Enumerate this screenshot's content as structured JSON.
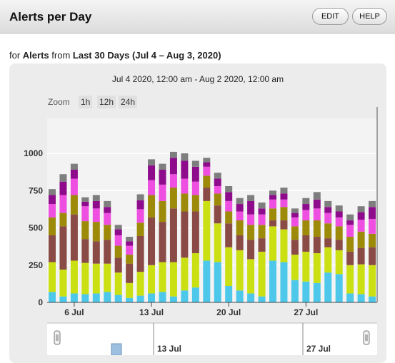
{
  "header": {
    "title": "Alerts per Day",
    "edit_label": "EDIT",
    "help_label": "HELP"
  },
  "subtitle": {
    "prefix": "for",
    "entity": "Alerts",
    "middle": "from",
    "range": "Last 30 Days (Jul 4 – Aug 3, 2020)"
  },
  "chart_header": {
    "date_range": "Jul 4 2020, 12:00 am - Aug 2 2020, 12:00 am"
  },
  "zoom": {
    "label": "Zoom",
    "options": [
      "1h",
      "12h",
      "24h"
    ]
  },
  "navigator": {
    "labels": [
      "13 Jul",
      "27 Jul"
    ]
  },
  "chart_data": {
    "type": "bar",
    "stacked": true,
    "title": "",
    "xlabel": "",
    "ylabel": "",
    "ylim": [
      0,
      1200
    ],
    "yticks": [
      0,
      250,
      500,
      750,
      1000
    ],
    "grid": true,
    "x_tick_labels": [
      "6 Jul",
      "13 Jul",
      "20 Jul",
      "27 Jul"
    ],
    "x_tick_days": [
      6,
      13,
      20,
      27
    ],
    "days": [
      4,
      5,
      6,
      7,
      8,
      9,
      10,
      11,
      12,
      13,
      14,
      15,
      16,
      17,
      18,
      19,
      20,
      21,
      22,
      23,
      24,
      25,
      26,
      27,
      28,
      29,
      30,
      31,
      32,
      33
    ],
    "series_colors": [
      "#4dc8ea",
      "#cbe012",
      "#8a4a45",
      "#9c8a08",
      "#ef4fe0",
      "#8e0c8c",
      "#7e7e7e",
      "#d9a6a0",
      "#1f5fa8",
      "#3a3a7a"
    ],
    "series": [
      {
        "name": "",
        "values": [
          70,
          40,
          60,
          55,
          60,
          70,
          50,
          30,
          45,
          60,
          70,
          40,
          80,
          100,
          280,
          270,
          110,
          80,
          60,
          40,
          280,
          270,
          150,
          140,
          130,
          200,
          190,
          60,
          55,
          40
        ]
      },
      {
        "name": "",
        "values": [
          200,
          180,
          220,
          210,
          200,
          190,
          150,
          100,
          160,
          190,
          200,
          230,
          220,
          230,
          400,
          260,
          260,
          270,
          230,
          300,
          230,
          220,
          170,
          200,
          200,
          170,
          160,
          190,
          200,
          210
        ]
      },
      {
        "name": "",
        "values": [
          180,
          290,
          310,
          160,
          150,
          160,
          100,
          130,
          240,
          320,
          270,
          360,
          310,
          280,
          90,
          120,
          160,
          100,
          130,
          90,
          40,
          60,
          100,
          110,
          110,
          60,
          70,
          90,
          110,
          120
        ]
      },
      {
        "name": "",
        "values": [
          120,
          90,
          130,
          120,
          130,
          100,
          80,
          60,
          90,
          150,
          140,
          140,
          120,
          110,
          80,
          80,
          80,
          100,
          100,
          90,
          80,
          90,
          90,
          100,
          110,
          100,
          90,
          100,
          110,
          90
        ]
      },
      {
        "name": "",
        "values": [
          90,
          120,
          110,
          100,
          90,
          80,
          70,
          60,
          90,
          100,
          110,
          90,
          100,
          90,
          60,
          50,
          70,
          60,
          70,
          70,
          60,
          50,
          60,
          70,
          80,
          70,
          60,
          80,
          80,
          100
        ]
      },
      {
        "name": "",
        "values": [
          60,
          90,
          60,
          30,
          50,
          40,
          40,
          30,
          60,
          100,
          100,
          110,
          120,
          100,
          30,
          50,
          60,
          50,
          90,
          40,
          30,
          40,
          30,
          40,
          60,
          40,
          40,
          30,
          50,
          80
        ]
      },
      {
        "name": "",
        "values": [
          40,
          50,
          40,
          30,
          40,
          40,
          30,
          30,
          40,
          40,
          40,
          40,
          50,
          40,
          30,
          40,
          40,
          40,
          40,
          40,
          30,
          40,
          30,
          40,
          50,
          40,
          40,
          40,
          40,
          40
        ]
      },
      {
        "name": "",
        "values": [
          0,
          0,
          0,
          0,
          0,
          0,
          0,
          0,
          0,
          0,
          0,
          0,
          0,
          0,
          0,
          0,
          0,
          0,
          0,
          0,
          0,
          0,
          0,
          0,
          0,
          0,
          0,
          0,
          0,
          0
        ]
      }
    ]
  }
}
